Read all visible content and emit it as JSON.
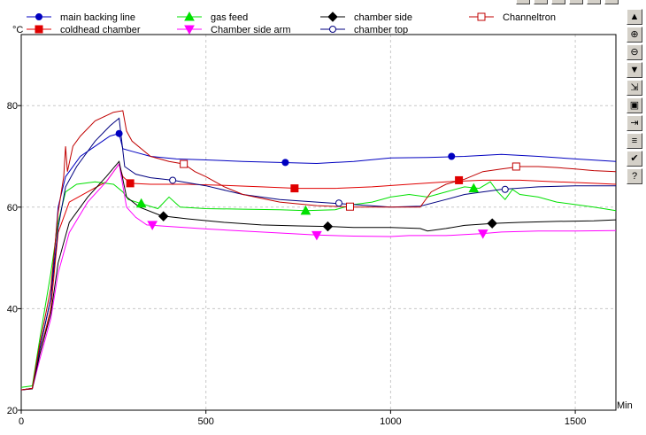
{
  "chart_data": {
    "type": "line",
    "x_unit": "Min",
    "y_unit": "°C",
    "xlim": [
      0,
      1610
    ],
    "ylim": [
      20,
      94
    ],
    "x_ticks": [
      0,
      500,
      1000,
      1500
    ],
    "y_ticks": [
      20,
      40,
      60,
      80
    ],
    "grid": true,
    "legend_position": "top",
    "series": [
      {
        "name": "main backing line",
        "color": "#0000c0",
        "marker": "circle-filled",
        "points": [
          [
            0,
            24
          ],
          [
            30,
            24.3
          ],
          [
            50,
            32
          ],
          [
            80,
            42
          ],
          [
            100,
            60
          ],
          [
            120,
            66
          ],
          [
            160,
            70
          ],
          [
            200,
            72
          ],
          [
            240,
            74
          ],
          [
            265,
            74.5
          ],
          [
            275,
            71.5
          ],
          [
            300,
            71
          ],
          [
            350,
            70
          ],
          [
            420,
            69.5
          ],
          [
            500,
            69.3
          ],
          [
            600,
            69
          ],
          [
            700,
            68.8
          ],
          [
            800,
            68.6
          ],
          [
            900,
            69
          ],
          [
            1000,
            69.7
          ],
          [
            1100,
            69.8
          ],
          [
            1200,
            70
          ],
          [
            1300,
            70.4
          ],
          [
            1400,
            70
          ],
          [
            1500,
            69.5
          ],
          [
            1610,
            69
          ]
        ],
        "markers": [
          [
            265,
            74.5
          ],
          [
            715,
            68.8
          ],
          [
            1165,
            70
          ]
        ]
      },
      {
        "name": "coldhead chamber",
        "color": "#e00000",
        "marker": "square-filled",
        "points": [
          [
            0,
            24
          ],
          [
            30,
            24.3
          ],
          [
            50,
            31
          ],
          [
            80,
            40
          ],
          [
            100,
            55
          ],
          [
            130,
            61
          ],
          [
            180,
            63
          ],
          [
            230,
            65
          ],
          [
            265,
            68.5
          ],
          [
            275,
            66
          ],
          [
            295,
            64.7
          ],
          [
            350,
            64.5
          ],
          [
            450,
            64.5
          ],
          [
            550,
            64.3
          ],
          [
            650,
            64
          ],
          [
            750,
            63.7
          ],
          [
            850,
            63.7
          ],
          [
            950,
            64
          ],
          [
            1050,
            64.5
          ],
          [
            1150,
            65
          ],
          [
            1250,
            65.3
          ],
          [
            1350,
            65.3
          ],
          [
            1450,
            65
          ],
          [
            1550,
            64.7
          ],
          [
            1610,
            64.5
          ]
        ],
        "markers": [
          [
            295,
            64.7
          ],
          [
            740,
            63.7
          ],
          [
            1185,
            65.3
          ]
        ]
      },
      {
        "name": "gas feed",
        "color": "#00e000",
        "marker": "triangle-up-filled",
        "points": [
          [
            0,
            24.5
          ],
          [
            30,
            24.8
          ],
          [
            50,
            34
          ],
          [
            80,
            47
          ],
          [
            100,
            57
          ],
          [
            120,
            63
          ],
          [
            150,
            64.5
          ],
          [
            200,
            65
          ],
          [
            250,
            64.5
          ],
          [
            275,
            63
          ],
          [
            290,
            61.5
          ],
          [
            325,
            60.7
          ],
          [
            370,
            59.7
          ],
          [
            400,
            62
          ],
          [
            430,
            60
          ],
          [
            500,
            59.7
          ],
          [
            600,
            59.6
          ],
          [
            700,
            59.5
          ],
          [
            770,
            59.3
          ],
          [
            850,
            59.5
          ],
          [
            900,
            60.5
          ],
          [
            950,
            61
          ],
          [
            1000,
            62
          ],
          [
            1050,
            62.5
          ],
          [
            1100,
            62
          ],
          [
            1150,
            63
          ],
          [
            1200,
            64
          ],
          [
            1240,
            63.7
          ],
          [
            1270,
            65
          ],
          [
            1290,
            63
          ],
          [
            1310,
            61.5
          ],
          [
            1330,
            63.5
          ],
          [
            1350,
            62.5
          ],
          [
            1400,
            62
          ],
          [
            1450,
            61
          ],
          [
            1500,
            60.5
          ],
          [
            1550,
            60
          ],
          [
            1610,
            59.3
          ]
        ],
        "markers": [
          [
            325,
            60.7
          ],
          [
            770,
            59.3
          ],
          [
            1225,
            63.7
          ]
        ]
      },
      {
        "name": "Chamber side arm",
        "color": "#ff00ff",
        "marker": "triangle-down-filled",
        "points": [
          [
            0,
            24
          ],
          [
            30,
            24.2
          ],
          [
            50,
            30
          ],
          [
            80,
            38
          ],
          [
            100,
            47
          ],
          [
            130,
            55
          ],
          [
            180,
            61
          ],
          [
            230,
            65
          ],
          [
            265,
            68.5
          ],
          [
            285,
            60
          ],
          [
            310,
            58
          ],
          [
            340,
            56.5
          ],
          [
            400,
            56.2
          ],
          [
            500,
            55.7
          ],
          [
            600,
            55.3
          ],
          [
            700,
            54.9
          ],
          [
            800,
            54.5
          ],
          [
            900,
            54.3
          ],
          [
            1000,
            54.2
          ],
          [
            1050,
            54.4
          ],
          [
            1100,
            54.4
          ],
          [
            1150,
            54.4
          ],
          [
            1200,
            54.6
          ],
          [
            1250,
            54.8
          ],
          [
            1300,
            55.1
          ],
          [
            1400,
            55.3
          ],
          [
            1500,
            55.3
          ],
          [
            1610,
            55.4
          ]
        ],
        "markers": [
          [
            355,
            56.5
          ],
          [
            800,
            54.5
          ],
          [
            1250,
            54.8
          ]
        ]
      },
      {
        "name": "chamber side",
        "color": "#000000",
        "marker": "diamond-filled",
        "points": [
          [
            0,
            24
          ],
          [
            30,
            24.2
          ],
          [
            50,
            31
          ],
          [
            80,
            39
          ],
          [
            100,
            49
          ],
          [
            130,
            57
          ],
          [
            180,
            62
          ],
          [
            230,
            66
          ],
          [
            265,
            69
          ],
          [
            285,
            62
          ],
          [
            320,
            60
          ],
          [
            380,
            58.3
          ],
          [
            450,
            57.7
          ],
          [
            550,
            57
          ],
          [
            650,
            56.5
          ],
          [
            750,
            56.3
          ],
          [
            830,
            56.2
          ],
          [
            900,
            56
          ],
          [
            1000,
            56
          ],
          [
            1080,
            55.8
          ],
          [
            1100,
            55.3
          ],
          [
            1150,
            55.8
          ],
          [
            1200,
            56.4
          ],
          [
            1280,
            56.8
          ],
          [
            1350,
            57
          ],
          [
            1450,
            57.2
          ],
          [
            1550,
            57.3
          ],
          [
            1610,
            57.5
          ]
        ],
        "markers": [
          [
            385,
            58.2
          ],
          [
            830,
            56.2
          ],
          [
            1275,
            56.8
          ]
        ]
      },
      {
        "name": "chamber top",
        "color": "#000080",
        "marker": "circle-open",
        "points": [
          [
            0,
            24
          ],
          [
            30,
            24.3
          ],
          [
            50,
            32
          ],
          [
            80,
            42
          ],
          [
            100,
            56
          ],
          [
            120,
            64
          ],
          [
            150,
            68
          ],
          [
            200,
            73
          ],
          [
            240,
            76
          ],
          [
            265,
            77.5
          ],
          [
            280,
            68
          ],
          [
            310,
            66.5
          ],
          [
            350,
            65.8
          ],
          [
            410,
            65.3
          ],
          [
            500,
            64.2
          ],
          [
            600,
            62.5
          ],
          [
            700,
            61.5
          ],
          [
            800,
            61
          ],
          [
            900,
            60.5
          ],
          [
            1000,
            60
          ],
          [
            1080,
            60.2
          ],
          [
            1150,
            61.5
          ],
          [
            1200,
            62.5
          ],
          [
            1300,
            63.5
          ],
          [
            1400,
            64
          ],
          [
            1500,
            64.2
          ],
          [
            1610,
            64.2
          ]
        ],
        "markers": [
          [
            410,
            65.3
          ],
          [
            860,
            60.8
          ],
          [
            1310,
            63.5
          ]
        ]
      },
      {
        "name": "Channeltron",
        "color": "#c00000",
        "marker": "square-open",
        "points": [
          [
            0,
            24
          ],
          [
            30,
            24.3
          ],
          [
            50,
            33
          ],
          [
            80,
            44
          ],
          [
            100,
            59
          ],
          [
            115,
            66
          ],
          [
            120,
            72
          ],
          [
            125,
            67
          ],
          [
            140,
            72
          ],
          [
            160,
            74
          ],
          [
            200,
            77
          ],
          [
            250,
            78.7
          ],
          [
            275,
            79
          ],
          [
            285,
            75
          ],
          [
            300,
            73
          ],
          [
            350,
            70
          ],
          [
            400,
            69
          ],
          [
            440,
            68.5
          ],
          [
            470,
            67
          ],
          [
            500,
            66
          ],
          [
            550,
            64
          ],
          [
            600,
            62.5
          ],
          [
            700,
            61
          ],
          [
            800,
            60.3
          ],
          [
            900,
            60
          ],
          [
            950,
            60
          ],
          [
            1000,
            60
          ],
          [
            1050,
            60
          ],
          [
            1080,
            60
          ],
          [
            1110,
            63
          ],
          [
            1150,
            64.5
          ],
          [
            1200,
            65.5
          ],
          [
            1250,
            67
          ],
          [
            1300,
            67.5
          ],
          [
            1350,
            68
          ],
          [
            1400,
            68
          ],
          [
            1450,
            67.8
          ],
          [
            1500,
            67.5
          ],
          [
            1550,
            67.2
          ],
          [
            1610,
            67
          ]
        ],
        "markers": [
          [
            440,
            68.5
          ],
          [
            890,
            60.1
          ],
          [
            1340,
            68
          ]
        ]
      }
    ]
  },
  "toolbar": [
    {
      "name": "scroll-up-button",
      "icon": "triangle-up-icon",
      "glyph": "▲"
    },
    {
      "name": "zoom-in-button",
      "icon": "zoom-in-icon",
      "glyph": "⊕"
    },
    {
      "name": "zoom-out-button",
      "icon": "zoom-out-icon",
      "glyph": "⊖"
    },
    {
      "name": "scroll-down-button",
      "icon": "triangle-down-icon",
      "glyph": "▼"
    },
    {
      "name": "load-button",
      "icon": "folder-arrow-icon",
      "glyph": "⇲"
    },
    {
      "name": "save-button",
      "icon": "disk-icon",
      "glyph": "▣"
    },
    {
      "name": "export-button",
      "icon": "disk-arrow-icon",
      "glyph": "⇥"
    },
    {
      "name": "legend-button",
      "icon": "color-lines-icon",
      "glyph": "≡"
    },
    {
      "name": "accept-button",
      "icon": "checkmark-icon",
      "glyph": "✔"
    },
    {
      "name": "help-button",
      "icon": "help-icon",
      "glyph": "?"
    }
  ]
}
